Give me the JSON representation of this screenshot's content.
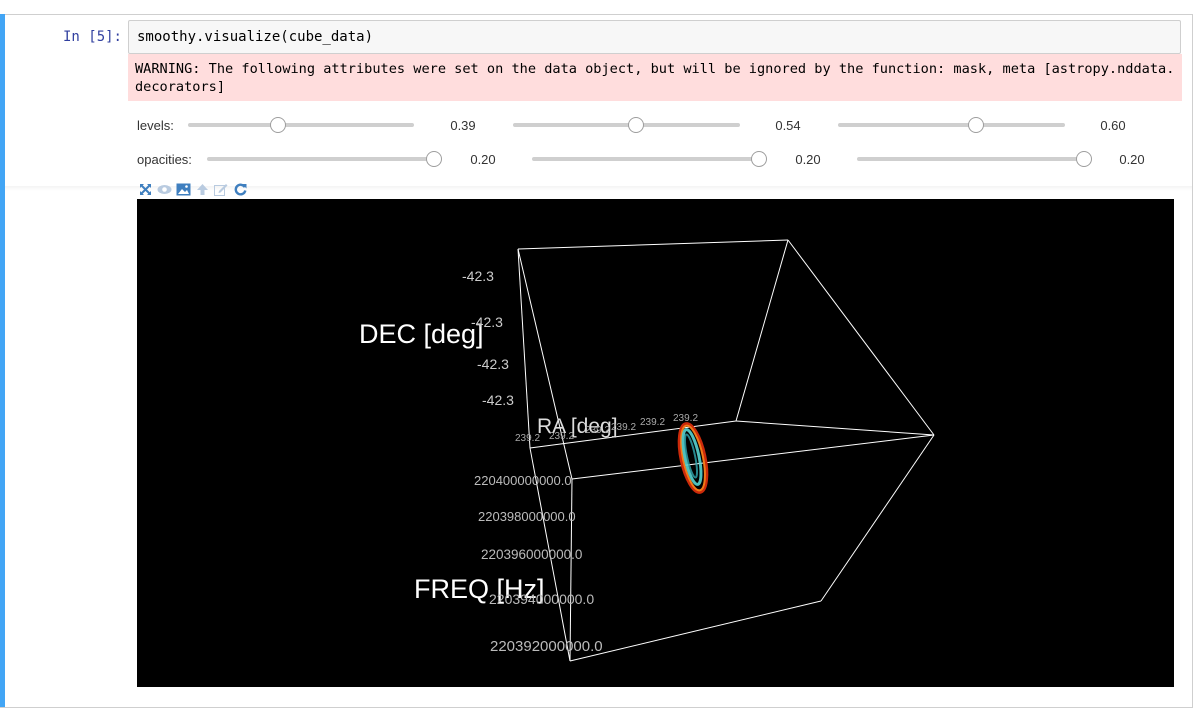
{
  "cell": {
    "prompt": "In [5]:",
    "code": "smoothy.visualize(cube_data)",
    "warning": "WARNING: The following attributes were set on the data object, but will be ignored by the function: mask, meta [astropy.nddata.decorators]"
  },
  "widgets": {
    "levels_label": "levels:",
    "opacities_label": "opacities:",
    "levels": [
      {
        "value": 0.39,
        "display": "0.39"
      },
      {
        "value": 0.54,
        "display": "0.54"
      },
      {
        "value": 0.6,
        "display": "0.60"
      }
    ],
    "opacities": [
      {
        "value": 0.2,
        "display": "0.20"
      },
      {
        "value": 0.2,
        "display": "0.20"
      },
      {
        "value": 0.2,
        "display": "0.20"
      }
    ]
  },
  "toolbar": {
    "icons": [
      "fullscreen-icon",
      "eye-icon",
      "image-icon",
      "arrow-up-icon",
      "edit-icon",
      "refresh-icon"
    ],
    "icon_color": "#3f7fbf"
  },
  "viewer": {
    "background": "#000000",
    "axis_titles": {
      "dec": "DEC [deg]",
      "ra": "RA [deg]",
      "freq": "FREQ [Hz]"
    },
    "dec_ticks": [
      "-42.3",
      "-42.3",
      "-42.3",
      "-42.3"
    ],
    "ra_ticks": [
      "239.2",
      "239.2",
      "239.2",
      "239.2",
      "239.2",
      "239.2"
    ],
    "freq_ticks": [
      "220400000000.0",
      "220398000000.0",
      "220396000000.0",
      "220394000000.0",
      "220392000000.0"
    ]
  }
}
